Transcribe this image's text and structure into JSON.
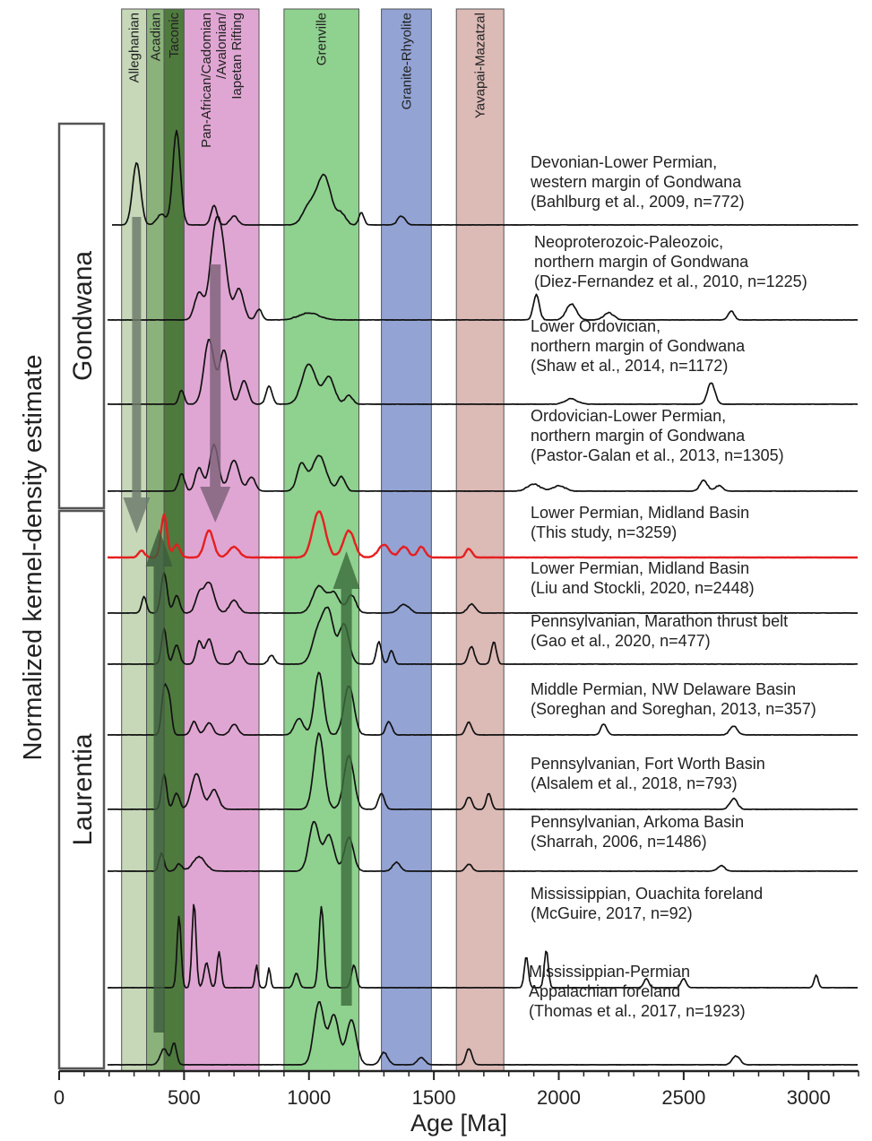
{
  "chart_data": {
    "type": "line",
    "xlabel": "Age [Ma]",
    "ylabel": "Normalized kernel-density estimate",
    "xlim": [
      0,
      3200
    ],
    "xticks": [
      0,
      500,
      1000,
      1500,
      2000,
      2500,
      3000
    ],
    "bands": [
      {
        "label": "Alleghanian",
        "start": 250,
        "end": 350,
        "color": "#c6d8b8"
      },
      {
        "label": "Acadian",
        "start": 350,
        "end": 420,
        "color": "#8ab27a"
      },
      {
        "label": "Taconic",
        "start": 420,
        "end": 500,
        "color": "#4e7a3e"
      },
      {
        "label": "Pan-African/Cadomian\n/Avalonian/\nIapetan Rifting",
        "start": 500,
        "end": 800,
        "color": "#e0a6d3"
      },
      {
        "label": "Grenville",
        "start": 900,
        "end": 1200,
        "color": "#8fd18f"
      },
      {
        "label": "Granite-Rhyolite",
        "start": 1290,
        "end": 1490,
        "color": "#93a3d4"
      },
      {
        "label": "Yavapai-Mazatzal",
        "start": 1590,
        "end": 1780,
        "color": "#dcbab6"
      }
    ],
    "groups": [
      {
        "label": "Gondwana"
      },
      {
        "label": "Laurentia"
      }
    ],
    "series": [
      {
        "name": "Devonian-Lower Permian,\nwestern margin of Gondwana\n(Bahlburg et al., 2009, n=772)",
        "color": "#111111",
        "peaks": [
          [
            310,
            70,
            16
          ],
          [
            470,
            105,
            15
          ],
          [
            410,
            12,
            18
          ],
          [
            620,
            22,
            12
          ],
          [
            700,
            10,
            15
          ],
          [
            1060,
            55,
            28
          ],
          [
            1000,
            20,
            25
          ],
          [
            1130,
            12,
            18
          ],
          [
            1210,
            14,
            10
          ],
          [
            1370,
            10,
            15
          ]
        ]
      },
      {
        "name": "Neoproterozoic-Paleozoic,\nnorthern margin of Gondwana\n(Diez-Fernandez et al., 2010, n=1225)",
        "color": "#111111",
        "peaks": [
          [
            560,
            30,
            18
          ],
          [
            620,
            70,
            20
          ],
          [
            650,
            80,
            22
          ],
          [
            720,
            35,
            18
          ],
          [
            800,
            12,
            12
          ],
          [
            1000,
            8,
            40
          ],
          [
            1910,
            28,
            12
          ],
          [
            2050,
            18,
            20
          ],
          [
            2200,
            8,
            20
          ],
          [
            2690,
            10,
            12
          ]
        ]
      },
      {
        "name": "Lower Ordovician,\nnorthern margin of Gondwana\n(Shaw et al., 2014, n=1172)",
        "color": "#111111",
        "peaks": [
          [
            490,
            16,
            10
          ],
          [
            600,
            72,
            20
          ],
          [
            660,
            60,
            18
          ],
          [
            740,
            26,
            16
          ],
          [
            840,
            20,
            12
          ],
          [
            1000,
            45,
            28
          ],
          [
            1080,
            30,
            22
          ],
          [
            1160,
            10,
            15
          ],
          [
            2050,
            6,
            25
          ],
          [
            2610,
            24,
            15
          ]
        ]
      },
      {
        "name": "Ordovician-Lower Permian,\nnorthern margin of Gondwana\n(Pastor-Galan et al., 2013, n=1305)",
        "color": "#111111",
        "peaks": [
          [
            490,
            20,
            12
          ],
          [
            560,
            26,
            15
          ],
          [
            620,
            52,
            18
          ],
          [
            700,
            35,
            20
          ],
          [
            770,
            16,
            15
          ],
          [
            970,
            30,
            18
          ],
          [
            1040,
            40,
            28
          ],
          [
            1130,
            16,
            15
          ],
          [
            1900,
            8,
            25
          ],
          [
            2000,
            6,
            25
          ],
          [
            2580,
            12,
            15
          ],
          [
            2640,
            6,
            15
          ]
        ]
      },
      {
        "name": "Lower Permian, Midland Basin\n(This study, n=3259)",
        "color": "#e51f1f",
        "peaks": [
          [
            330,
            8,
            12
          ],
          [
            420,
            48,
            12
          ],
          [
            470,
            14,
            14
          ],
          [
            600,
            30,
            18
          ],
          [
            700,
            12,
            20
          ],
          [
            1040,
            52,
            25
          ],
          [
            1160,
            30,
            22
          ],
          [
            1300,
            14,
            22
          ],
          [
            1380,
            12,
            18
          ],
          [
            1450,
            12,
            15
          ],
          [
            1640,
            10,
            12
          ]
        ]
      },
      {
        "name": "Lower Permian, Midland Basin\n(Liu and Stockli, 2020, n=2448)",
        "color": "#111111",
        "peaks": [
          [
            340,
            18,
            10
          ],
          [
            420,
            45,
            12
          ],
          [
            470,
            20,
            12
          ],
          [
            560,
            20,
            15
          ],
          [
            600,
            34,
            20
          ],
          [
            700,
            14,
            18
          ],
          [
            1040,
            30,
            25
          ],
          [
            1100,
            22,
            22
          ],
          [
            1170,
            20,
            18
          ],
          [
            1380,
            10,
            20
          ],
          [
            1650,
            10,
            15
          ]
        ]
      },
      {
        "name": "Pennsylvanian, Marathon thrust belt\n(Gao et al., 2020, n=477)",
        "color": "#111111",
        "peaks": [
          [
            420,
            40,
            10
          ],
          [
            470,
            22,
            12
          ],
          [
            560,
            25,
            12
          ],
          [
            600,
            28,
            15
          ],
          [
            720,
            15,
            15
          ],
          [
            850,
            10,
            12
          ],
          [
            1040,
            40,
            25
          ],
          [
            1080,
            50,
            20
          ],
          [
            1140,
            45,
            20
          ],
          [
            1280,
            25,
            10
          ],
          [
            1330,
            15,
            10
          ],
          [
            1650,
            20,
            12
          ],
          [
            1740,
            25,
            10
          ]
        ]
      },
      {
        "name": "Middle Permian, NW Delaware Basin\n(Soreghan and Soreghan, 2013, n=357)",
        "color": "#111111",
        "peaks": [
          [
            420,
            50,
            10
          ],
          [
            440,
            40,
            10
          ],
          [
            540,
            15,
            12
          ],
          [
            600,
            14,
            15
          ],
          [
            700,
            12,
            15
          ],
          [
            960,
            18,
            18
          ],
          [
            1040,
            70,
            18
          ],
          [
            1160,
            55,
            20
          ],
          [
            1320,
            15,
            12
          ],
          [
            1640,
            14,
            12
          ],
          [
            2180,
            12,
            12
          ],
          [
            2700,
            10,
            15
          ]
        ]
      },
      {
        "name": "Pennsylvanian, Fort Worth Basin\n(Alsalem et al., 2018, n=793)",
        "color": "#111111",
        "peaks": [
          [
            420,
            40,
            10
          ],
          [
            470,
            18,
            12
          ],
          [
            550,
            40,
            20
          ],
          [
            620,
            22,
            18
          ],
          [
            1040,
            85,
            20
          ],
          [
            1160,
            60,
            20
          ],
          [
            1290,
            18,
            12
          ],
          [
            1640,
            14,
            12
          ],
          [
            1720,
            18,
            10
          ],
          [
            2700,
            12,
            15
          ]
        ]
      },
      {
        "name": "Pennsylvanian, Arkoma Basin\n(Sharrah, 2006, n=1486)",
        "color": "#111111",
        "peaks": [
          [
            410,
            20,
            10
          ],
          [
            480,
            8,
            12
          ],
          [
            560,
            16,
            25
          ],
          [
            1020,
            55,
            20
          ],
          [
            1080,
            40,
            20
          ],
          [
            1160,
            38,
            18
          ],
          [
            1350,
            10,
            15
          ],
          [
            1640,
            8,
            12
          ],
          [
            2650,
            6,
            15
          ]
        ]
      },
      {
        "name": "Mississippian, Ouachita foreland\n(McGuire, 2017, n=92)",
        "color": "#111111",
        "peaks": [
          [
            480,
            80,
            8
          ],
          [
            540,
            95,
            8
          ],
          [
            590,
            28,
            10
          ],
          [
            640,
            40,
            8
          ],
          [
            790,
            25,
            6
          ],
          [
            840,
            22,
            6
          ],
          [
            950,
            16,
            10
          ],
          [
            1050,
            90,
            10
          ],
          [
            1180,
            25,
            10
          ],
          [
            1870,
            35,
            8
          ],
          [
            1950,
            42,
            8
          ],
          [
            2350,
            10,
            10
          ],
          [
            2500,
            10,
            10
          ],
          [
            3030,
            14,
            8
          ]
        ]
      },
      {
        "name": "Mississippian-Permian\nAppalachian foreland\n(Thomas et al., 2017, n=1923)",
        "color": "#111111",
        "peaks": [
          [
            420,
            18,
            15
          ],
          [
            460,
            24,
            10
          ],
          [
            1040,
            70,
            20
          ],
          [
            1100,
            55,
            20
          ],
          [
            1170,
            50,
            20
          ],
          [
            1300,
            14,
            15
          ],
          [
            1450,
            8,
            15
          ],
          [
            1640,
            18,
            12
          ],
          [
            2710,
            10,
            15
          ]
        ]
      }
    ],
    "arrows": [
      {
        "x": 310,
        "from_series": 0,
        "to_series": 4,
        "direction": "down"
      },
      {
        "x": 625,
        "from_series": 1,
        "to_series": 4,
        "direction": "down"
      },
      {
        "x": 400,
        "from_series": 11,
        "to_series": 5,
        "direction": "up"
      },
      {
        "x": 1150,
        "from_series": 10,
        "to_series": 5,
        "direction": "up"
      }
    ]
  }
}
